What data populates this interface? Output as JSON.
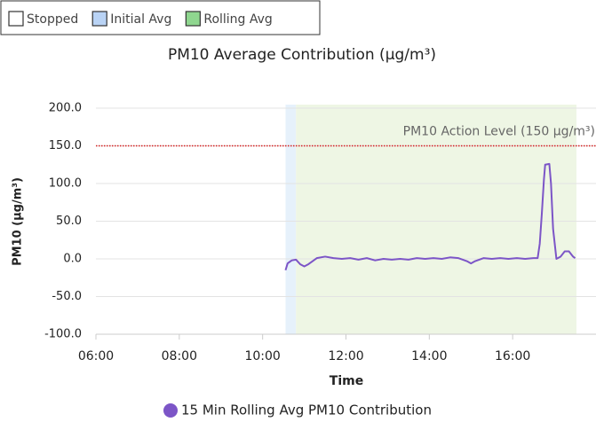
{
  "chart_data": {
    "type": "line",
    "title": "PM10 Average Contribution (µg/m³)",
    "legend_boxes": [
      {
        "name": "Stopped",
        "color": "#ffffff"
      },
      {
        "name": "Initial Avg",
        "color": "#b9d3f5"
      },
      {
        "name": "Rolling Avg",
        "color": "#8fd68f"
      }
    ],
    "regions": [
      {
        "name": "Initial Avg",
        "start": 10.55,
        "end": 10.8,
        "color": "#e6f1fb"
      },
      {
        "name": "Rolling Avg",
        "start": 10.8,
        "end": 17.53,
        "color": "#eef6e4"
      }
    ],
    "threshold": {
      "value": 150,
      "label": "PM10 Action Level (150 µg/m³)",
      "color": "#d62020"
    },
    "x_label": "Time",
    "y_label": "PM10 (µg/m³)",
    "xlim": [
      6,
      18
    ],
    "xticks": [
      {
        "value": 6,
        "label": "06:00"
      },
      {
        "value": 8,
        "label": "08:00"
      },
      {
        "value": 10,
        "label": "10:00"
      },
      {
        "value": 12,
        "label": "12:00"
      },
      {
        "value": 14,
        "label": "14:00"
      },
      {
        "value": 16,
        "label": "16:00"
      }
    ],
    "ylim": [
      -100,
      200
    ],
    "yticks": [
      {
        "value": -100,
        "label": "-100.0"
      },
      {
        "value": -50,
        "label": "-50.0"
      },
      {
        "value": 0,
        "label": "0.0"
      },
      {
        "value": 50,
        "label": "50.0"
      },
      {
        "value": 100,
        "label": "100.0"
      },
      {
        "value": 150,
        "label": "150.0"
      },
      {
        "value": 200,
        "label": "200.0"
      }
    ],
    "grid": true,
    "legend": "bottom",
    "x": [
      10.55,
      10.6,
      10.7,
      10.8,
      10.9,
      11.0,
      11.1,
      11.3,
      11.5,
      11.7,
      11.9,
      12.1,
      12.3,
      12.5,
      12.7,
      12.9,
      13.1,
      13.3,
      13.5,
      13.7,
      13.9,
      14.1,
      14.3,
      14.5,
      14.7,
      14.9,
      15.0,
      15.1,
      15.3,
      15.5,
      15.7,
      15.9,
      16.1,
      16.3,
      16.5,
      16.6,
      16.65,
      16.7,
      16.75,
      16.78,
      16.88,
      16.92,
      16.97,
      17.05,
      17.15,
      17.25,
      17.35,
      17.45,
      17.5
    ],
    "series": [
      {
        "name": "15 Min Rolling Avg PM10 Contribution",
        "color": "#7c55c7",
        "values": [
          -15,
          -6,
          -2,
          -1,
          -7,
          -10,
          -7,
          1,
          3,
          1,
          0,
          1,
          -1,
          1,
          -2,
          0,
          -1,
          0,
          -1,
          1,
          0,
          1,
          0,
          2,
          1,
          -3,
          -6,
          -3,
          1,
          0,
          1,
          0,
          1,
          0,
          1,
          1,
          20,
          60,
          105,
          125,
          126,
          100,
          40,
          0,
          3,
          10,
          10,
          3,
          1
        ]
      }
    ]
  }
}
